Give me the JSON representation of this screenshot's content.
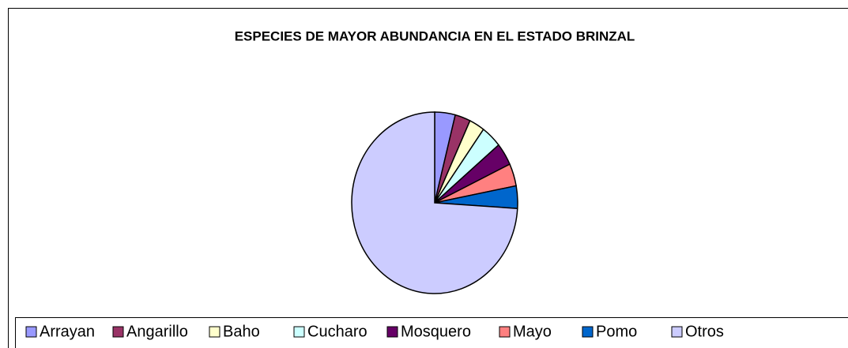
{
  "chart_data": {
    "type": "pie",
    "title": "ESPECIES DE MAYOR ABUNDANCIA EN EL ESTADO BRINZAL",
    "categories": [
      "Arrayan",
      "Angarillo",
      "Baho",
      "Cucharo",
      "Mosquero",
      "Mayo",
      "Pomo",
      "Otros"
    ],
    "values": [
      4,
      3,
      3,
      4,
      4,
      4,
      4,
      74
    ],
    "colors": [
      "#9999ff",
      "#993366",
      "#ffffcc",
      "#ccffff",
      "#660066",
      "#ff8080",
      "#0066cc",
      "#ccccff"
    ],
    "legend": "bottom"
  }
}
